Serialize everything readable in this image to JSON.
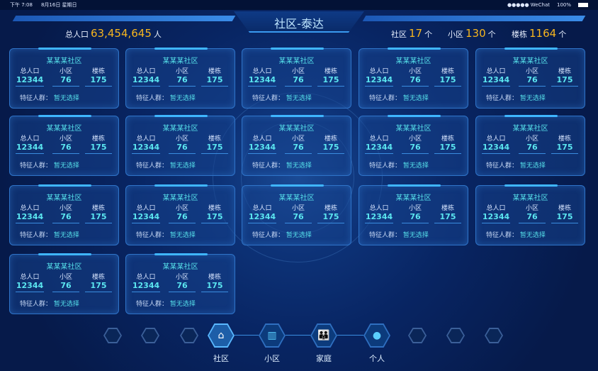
{
  "status_bar": {
    "time": "下午 7:08",
    "date": "8月16日 星期日",
    "carrier": "●●●●● WeChat",
    "battery": "100%"
  },
  "header": {
    "title": "社区-泰达",
    "population_label": "总人口",
    "population_value": "63,454,645",
    "population_unit": "人",
    "community_label": "社区",
    "community_value": "17",
    "community_unit": "个",
    "estate_label": "小区",
    "estate_value": "130",
    "estate_unit": "个",
    "building_label": "楼栋",
    "building_value": "1164",
    "building_unit": "个"
  },
  "card_labels": {
    "population": "总人口",
    "estate": "小区",
    "building": "楼栋",
    "tag": "特征人群："
  },
  "cards": [
    {
      "name": "某某某社区",
      "population": "12344",
      "estate": "76",
      "building": "175",
      "tag": "暂无选择"
    },
    {
      "name": "某某某社区",
      "population": "12344",
      "estate": "76",
      "building": "175",
      "tag": "暂无选择"
    },
    {
      "name": "某某某社区",
      "population": "12344",
      "estate": "76",
      "building": "175",
      "tag": "暂无选择"
    },
    {
      "name": "某某某社区",
      "population": "12344",
      "estate": "76",
      "building": "175",
      "tag": "暂无选择"
    },
    {
      "name": "某某某社区",
      "population": "12344",
      "estate": "76",
      "building": "175",
      "tag": "暂无选择"
    },
    {
      "name": "某某某社区",
      "population": "12344",
      "estate": "76",
      "building": "175",
      "tag": "暂无选择"
    },
    {
      "name": "某某某社区",
      "population": "12344",
      "estate": "76",
      "building": "175",
      "tag": "暂无选择"
    },
    {
      "name": "某某某社区",
      "population": "12344",
      "estate": "76",
      "building": "175",
      "tag": "暂无选择"
    },
    {
      "name": "某某某社区",
      "population": "12344",
      "estate": "76",
      "building": "175",
      "tag": "暂无选择"
    },
    {
      "name": "某某某社区",
      "population": "12344",
      "estate": "76",
      "building": "175",
      "tag": "暂无选择"
    },
    {
      "name": "某某某社区",
      "population": "12344",
      "estate": "76",
      "building": "175",
      "tag": "暂无选择"
    },
    {
      "name": "某某某社区",
      "population": "12344",
      "estate": "76",
      "building": "175",
      "tag": "暂无选择"
    },
    {
      "name": "某某某社区",
      "population": "12344",
      "estate": "76",
      "building": "175",
      "tag": "暂无选择"
    },
    {
      "name": "某某某社区",
      "population": "12344",
      "estate": "76",
      "building": "175",
      "tag": "暂无选择"
    },
    {
      "name": "某某某社区",
      "population": "12344",
      "estate": "76",
      "building": "175",
      "tag": "暂无选择"
    },
    {
      "name": "某某某社区",
      "population": "12344",
      "estate": "76",
      "building": "175",
      "tag": "暂无选择"
    },
    {
      "name": "某某某社区",
      "population": "12344",
      "estate": "76",
      "building": "175",
      "tag": "暂无选择"
    }
  ],
  "nav": [
    {
      "label": "社区",
      "icon": "houses-icon",
      "active": true
    },
    {
      "label": "小区",
      "icon": "buildings-icon"
    },
    {
      "label": "家庭",
      "icon": "family-icon"
    },
    {
      "label": "个人",
      "icon": "person-icon"
    }
  ],
  "colors": {
    "accent": "#f6b51e",
    "cyan": "#56e0ea",
    "background": "#061a4a"
  }
}
